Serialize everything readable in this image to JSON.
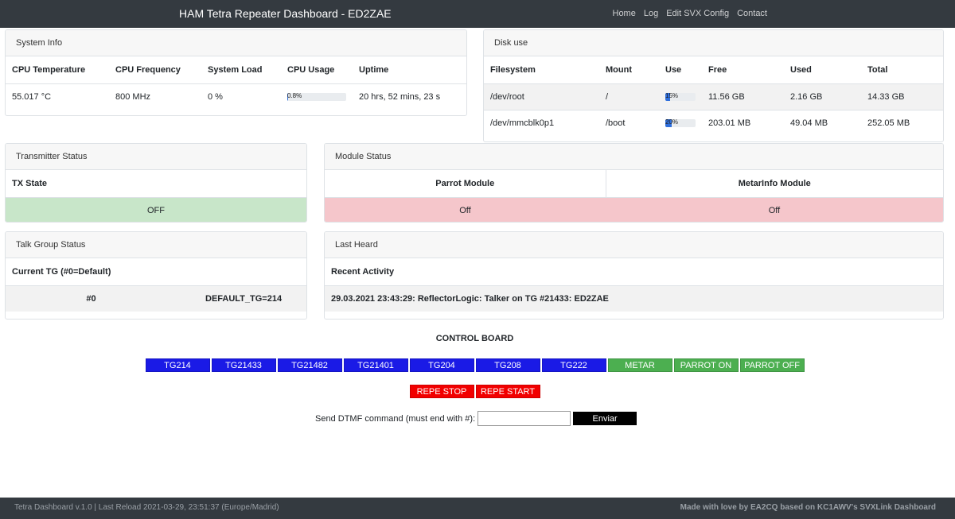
{
  "navbar": {
    "title": "HAM Tetra Repeater Dashboard - ED2ZAE",
    "links": [
      "Home",
      "Log",
      "Edit SVX Config",
      "Contact"
    ]
  },
  "system_info": {
    "title": "System Info",
    "headers": [
      "CPU Temperature",
      "CPU Frequency",
      "System Load",
      "CPU Usage",
      "Uptime"
    ],
    "cpu_temperature": "55.017 °C",
    "cpu_frequency": "800 MHz",
    "system_load": "0 %",
    "cpu_usage_label": "0.8%",
    "cpu_usage_fraction": 0.008,
    "uptime": "20 hrs, 52 mins, 23 s"
  },
  "disk_use": {
    "title": "Disk use",
    "headers": [
      "Filesystem",
      "Mount",
      "Use",
      "Free",
      "Used",
      "Total"
    ],
    "rows": [
      {
        "filesystem": "/dev/root",
        "mount": "/",
        "use_label": "15%",
        "use_fraction": 0.15,
        "free": "11.56 GB",
        "used": "2.16 GB",
        "total": "14.33 GB"
      },
      {
        "filesystem": "/dev/mmcblk0p1",
        "mount": "/boot",
        "use_label": "20%",
        "use_fraction": 0.2,
        "free": "203.01 MB",
        "used": "49.04 MB",
        "total": "252.05 MB"
      }
    ]
  },
  "transmitter": {
    "title": "Transmitter Status",
    "header": "TX State",
    "state": "OFF"
  },
  "modules": {
    "title": "Module Status",
    "headers": [
      "Parrot Module",
      "MetarInfo Module"
    ],
    "values": [
      "Off",
      "Off"
    ]
  },
  "talk_group": {
    "title": "Talk Group Status",
    "header": "Current TG (#0=Default)",
    "current": "#0",
    "default": "DEFAULT_TG=214"
  },
  "last_heard": {
    "title": "Last Heard",
    "header": "Recent Activity",
    "entry": "29.03.2021 23:43:29: ReflectorLogic: Talker on TG #21433: ED2ZAE"
  },
  "control_board": {
    "title": "CONTROL BOARD",
    "tg_buttons": [
      "TG214",
      "TG21433",
      "TG21482",
      "TG21401",
      "TG204",
      "TG208",
      "TG222"
    ],
    "module_buttons": [
      "METAR",
      "PARROT ON",
      "PARROT OFF"
    ],
    "repeater_buttons": [
      "REPE STOP",
      "REPE START"
    ],
    "dtmf_label": "Send DTMF command (must end with #):",
    "dtmf_value": "",
    "dtmf_send": "Enviar"
  },
  "footer": {
    "left": "Tetra Dashboard v.1.0 | Last Reload 2021-03-29, 23:51:37 (Europe/Madrid)",
    "right": "Made with love by EA2CQ based on KC1AWV's SVXLink Dashboard"
  },
  "colors": {
    "navbar": "#343a40",
    "tg_button": "#1a1ae6",
    "module_button": "#4caf50",
    "repeater_button": "#f20000",
    "status_off_green": "#c8e6c9",
    "status_off_red": "#f5c6cb"
  }
}
